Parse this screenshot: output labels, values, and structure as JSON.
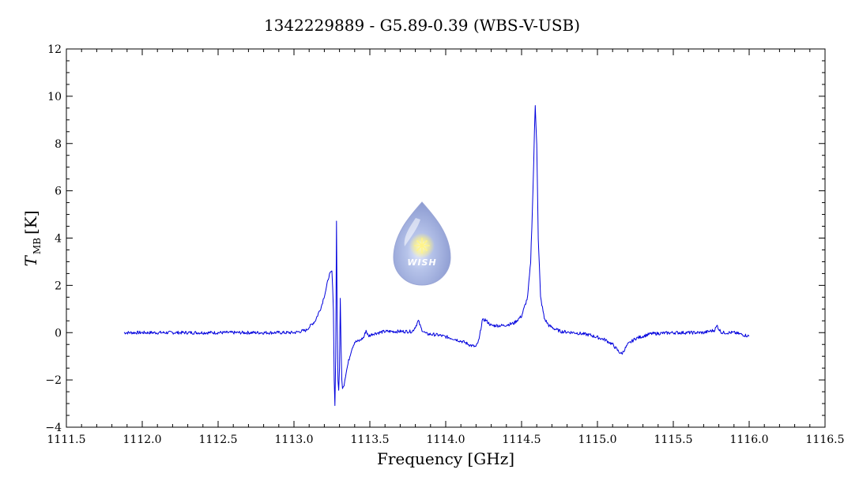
{
  "chart_data": {
    "type": "line",
    "title": "1342229889 - G5.89-0.39 (WBS-V-USB)",
    "xlabel": "Frequency [GHz]",
    "ylabel_main": "T",
    "ylabel_sub": "MB",
    "ylabel_unit": "[K]",
    "xlim": [
      1111.5,
      1116.5
    ],
    "ylim": [
      -4,
      12
    ],
    "x_ticks": [
      1111.5,
      1112.0,
      1112.5,
      1113.0,
      1113.5,
      1114.0,
      1114.5,
      1115.0,
      1115.5,
      1116.0,
      1116.5
    ],
    "x_tick_labels": [
      "1111.5",
      "1112.0",
      "1112.5",
      "1113.0",
      "1113.5",
      "1114.0",
      "1114.5",
      "1115.0",
      "1115.5",
      "1116.0",
      "1116.5"
    ],
    "y_ticks": [
      -4,
      -2,
      0,
      2,
      4,
      6,
      8,
      10,
      12
    ],
    "y_tick_labels": [
      "−4",
      "−2",
      "0",
      "2",
      "4",
      "6",
      "8",
      "10",
      "12"
    ],
    "grid": false,
    "line_color": "#0000dd",
    "series": [
      {
        "x": [
          1111.88,
          1112.0,
          1112.5,
          1113.0,
          1113.08,
          1113.14,
          1113.18,
          1113.21,
          1113.23,
          1113.25,
          1113.26,
          1113.265,
          1113.27,
          1113.275,
          1113.28,
          1113.285,
          1113.29,
          1113.295,
          1113.3,
          1113.305,
          1113.31,
          1113.315,
          1113.32,
          1113.33,
          1113.34,
          1113.36,
          1113.38,
          1113.4,
          1113.43,
          1113.46,
          1113.475,
          1113.49,
          1113.52,
          1113.6,
          1113.7,
          1113.78,
          1113.8,
          1113.82,
          1113.84,
          1113.87,
          1113.95,
          1114.05,
          1114.12,
          1114.17,
          1114.2,
          1114.22,
          1114.24,
          1114.26,
          1114.3,
          1114.38,
          1114.45,
          1114.5,
          1114.54,
          1114.56,
          1114.575,
          1114.585,
          1114.59,
          1114.6,
          1114.61,
          1114.625,
          1114.65,
          1114.68,
          1114.72,
          1114.76,
          1114.85,
          1114.95,
          1115.05,
          1115.1,
          1115.14,
          1115.16,
          1115.2,
          1115.25,
          1115.35,
          1115.5,
          1115.7,
          1115.77,
          1115.79,
          1115.8,
          1115.82,
          1115.9,
          1116.0
        ],
        "y": [
          0.0,
          0.0,
          0.0,
          0.0,
          0.1,
          0.5,
          1.1,
          1.8,
          2.4,
          2.6,
          1.0,
          -2.0,
          -3.1,
          -1.0,
          4.7,
          0.5,
          -2.0,
          -2.5,
          -1.5,
          1.5,
          -0.5,
          -2.0,
          -2.3,
          -2.2,
          -1.8,
          -1.2,
          -0.7,
          -0.4,
          -0.35,
          -0.2,
          0.1,
          -0.15,
          -0.05,
          0.05,
          0.05,
          0.05,
          0.25,
          0.5,
          0.15,
          -0.05,
          -0.1,
          -0.25,
          -0.4,
          -0.55,
          -0.6,
          -0.3,
          0.5,
          0.55,
          0.3,
          0.3,
          0.4,
          0.7,
          1.5,
          3.0,
          6.0,
          8.5,
          9.6,
          8.0,
          4.0,
          1.5,
          0.6,
          0.3,
          0.15,
          0.05,
          0.0,
          -0.1,
          -0.3,
          -0.5,
          -0.8,
          -0.9,
          -0.5,
          -0.25,
          -0.05,
          0.0,
          0.0,
          0.1,
          0.3,
          0.15,
          0.0,
          0.0,
          -0.15
        ]
      }
    ],
    "logo_label": "WISH"
  }
}
